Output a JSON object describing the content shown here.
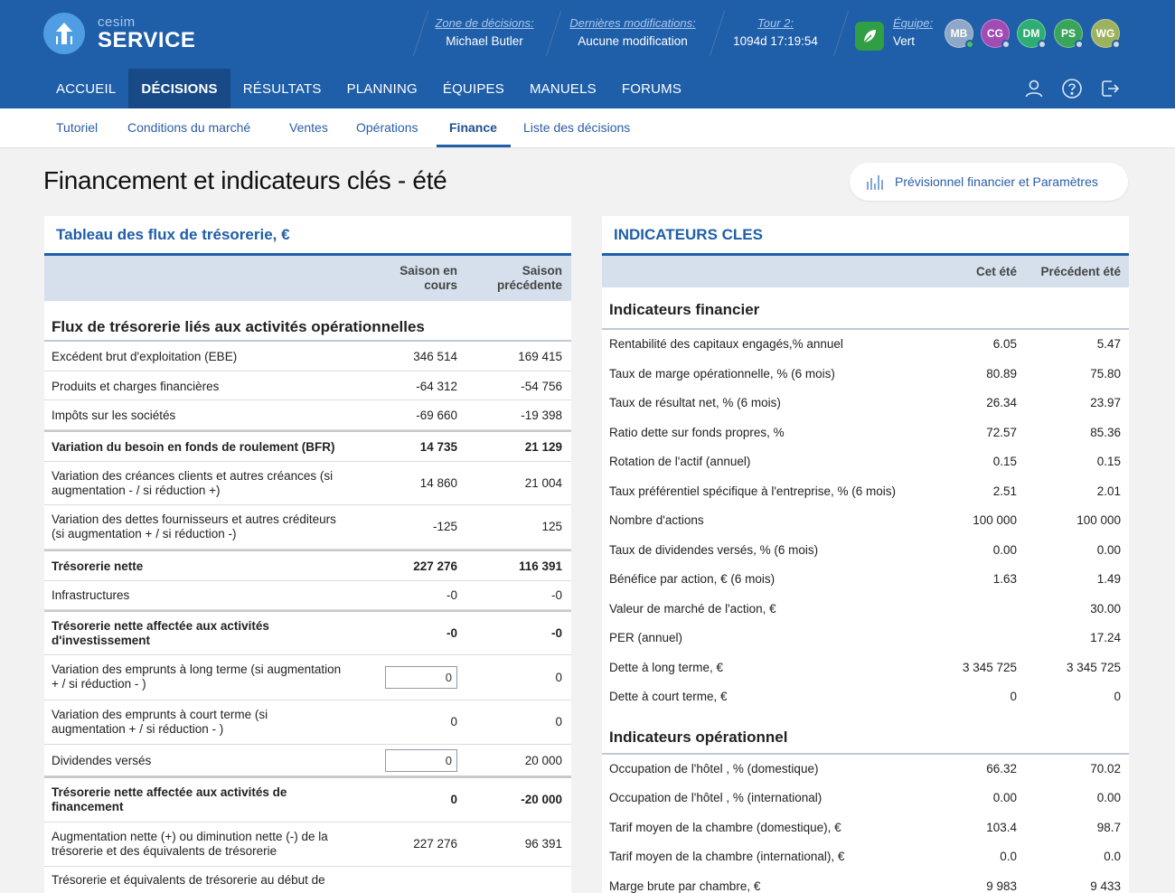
{
  "app": {
    "brand": "cesim",
    "product": "SERVICE"
  },
  "header": {
    "zone_label": "Zone de décisions:",
    "zone_value": "Michael Butler",
    "mods_label": "Dernières modifications:",
    "mods_value": "Aucune modification",
    "tour_label": "Tour 2:",
    "tour_value": "1094d 17:19:54",
    "team_label": "Équipe:",
    "team_value": "Vert",
    "avatars": [
      "MB",
      "CG",
      "DM",
      "PS",
      "WG"
    ]
  },
  "colors": {
    "header": "#1f5ea8",
    "nav_active": "#174a87",
    "panel_accent": "#1f5ea8",
    "team": "#2f9e44",
    "avatar_mb": "#8fa8c6",
    "avatar_cg": "#a14bb5",
    "avatar_dm": "#2fae74",
    "avatar_ps": "#39a55a",
    "avatar_wg": "#9db25e"
  },
  "icons": {
    "logo": "arrow-up-icon",
    "team": "leaf-icon",
    "user": "user-icon",
    "help": "help-icon",
    "logout": "logout-icon",
    "forecast": "bar-chart-icon"
  },
  "nav": [
    "ACCUEIL",
    "DÉCISIONS",
    "RÉSULTATS",
    "PLANNING",
    "ÉQUIPES",
    "MANUELS",
    "FORUMS"
  ],
  "subnav": [
    "Tutoriel",
    "Conditions du marché",
    "Ventes",
    "Opérations",
    "Finance",
    "Liste des décisions"
  ],
  "page": {
    "title": "Financement et indicateurs clés - été",
    "forecast_button": "Prévisionnel financier et Paramètres"
  },
  "cashflow": {
    "title": "Tableau des flux de trésorerie, €",
    "col1_a": "Saison en",
    "col1_b": "cours",
    "col2_a": "Saison",
    "col2_b": "précédente",
    "section": "Flux de trésorerie liés aux activités opérationnelles",
    "rows": [
      {
        "a": "Excédent brut d'exploitation (EBE)",
        "b": "",
        "v1": "346 514",
        "v2": "169 415"
      },
      {
        "a": "Produits et charges financières",
        "b": "",
        "v1": "-64 312",
        "v2": "-54 756"
      },
      {
        "a": "Impôts sur les sociétés",
        "b": "",
        "v1": "-69 660",
        "v2": "-19 398"
      },
      {
        "a": "Variation du besoin en fonds de roulement (BFR)",
        "b": "",
        "v1": "14 735",
        "v2": "21 129"
      },
      {
        "a": "Variation des créances clients et autres créances (si",
        "b": "augmentation - / si réduction +)",
        "v1": "14 860",
        "v2": "21 004"
      },
      {
        "a": "Variation des dettes fournisseurs et autres créditeurs",
        "b": "(si augmentation + / si réduction -)",
        "v1": "-125",
        "v2": "125"
      },
      {
        "a": "Trésorerie nette",
        "b": "",
        "v1": "227 276",
        "v2": "116 391"
      },
      {
        "a": "Infrastructures",
        "b": "",
        "v1": "-0",
        "v2": "-0"
      },
      {
        "a": "Trésorerie nette affectée aux activités",
        "b": "d'investissement",
        "v1": "-0",
        "v2": "-0"
      },
      {
        "a": "Variation des emprunts à long terme (si augmentation",
        "b": "+ / si réduction - )",
        "v1": "0",
        "v2": "0"
      },
      {
        "a": "Variation des emprunts à court terme (si",
        "b": "augmentation + / si réduction - )",
        "v1": "0",
        "v2": "0"
      },
      {
        "a": "Dividendes versés",
        "b": "",
        "v1": "0",
        "v2": "20 000"
      },
      {
        "a": "Trésorerie nette affectée aux activités de",
        "b": "financement",
        "v1": "0",
        "v2": "-20 000"
      },
      {
        "a": "Augmentation nette (+) ou diminution nette (-) de la",
        "b": "trésorerie et des équivalents de trésorerie",
        "v1": "227 276",
        "v2": "96 391"
      },
      {
        "a": "Trésorerie et équivalents de trésorerie au début de",
        "b": "",
        "v1": "",
        "v2": ""
      }
    ]
  },
  "indicators": {
    "title": "INDICATEURS CLES",
    "col1": "Cet été",
    "col2": "Précédent été",
    "section1": "Indicateurs financier",
    "fin_rows": [
      {
        "a": "Rentabilité des capitaux engagés,% annuel",
        "v1": "6.05",
        "v2": "5.47"
      },
      {
        "a": "Taux de marge opérationnelle, % (6 mois)",
        "v1": "80.89",
        "v2": "75.80"
      },
      {
        "a": "Taux de résultat net, % (6 mois)",
        "v1": "26.34",
        "v2": "23.97"
      },
      {
        "a": "Ratio dette sur fonds propres, %",
        "v1": "72.57",
        "v2": "85.36"
      },
      {
        "a": "Rotation de l'actif (annuel)",
        "v1": "0.15",
        "v2": "0.15"
      },
      {
        "a": "Taux préférentiel spécifique à l'entreprise, % (6 mois)",
        "v1": "2.51",
        "v2": "2.01"
      },
      {
        "a": "Nombre d'actions",
        "v1": "100 000",
        "v2": "100 000"
      },
      {
        "a": "Taux de dividendes versés, % (6 mois)",
        "v1": "0.00",
        "v2": "0.00"
      },
      {
        "a": "Bénéfice par action, € (6 mois)",
        "v1": "1.63",
        "v2": "1.49"
      },
      {
        "a": "Valeur de marché de l'action, €",
        "v1": "",
        "v2": "30.00"
      },
      {
        "a": "PER (annuel)",
        "v1": "",
        "v2": "17.24"
      },
      {
        "a": "Dette à long terme, €",
        "v1": "3 345 725",
        "v2": "3 345 725"
      },
      {
        "a": "Dette à court terme, €",
        "v1": "0",
        "v2": "0"
      }
    ],
    "section2": "Indicateurs opérationnel",
    "op_rows": [
      {
        "a": "Occupation de l'hôtel , % (domestique)",
        "v1": "66.32",
        "v2": "70.02"
      },
      {
        "a": "Occupation de l'hôtel , % (international)",
        "v1": "0.00",
        "v2": "0.00"
      },
      {
        "a": "Tarif moyen de la chambre (domestique), €",
        "v1": "103.4",
        "v2": "98.7"
      },
      {
        "a": "Tarif moyen de la chambre (international), €",
        "v1": "0.0",
        "v2": "0.0"
      },
      {
        "a": "Marge brute par chambre, €",
        "v1": "9 983",
        "v2": "9 433"
      }
    ]
  }
}
